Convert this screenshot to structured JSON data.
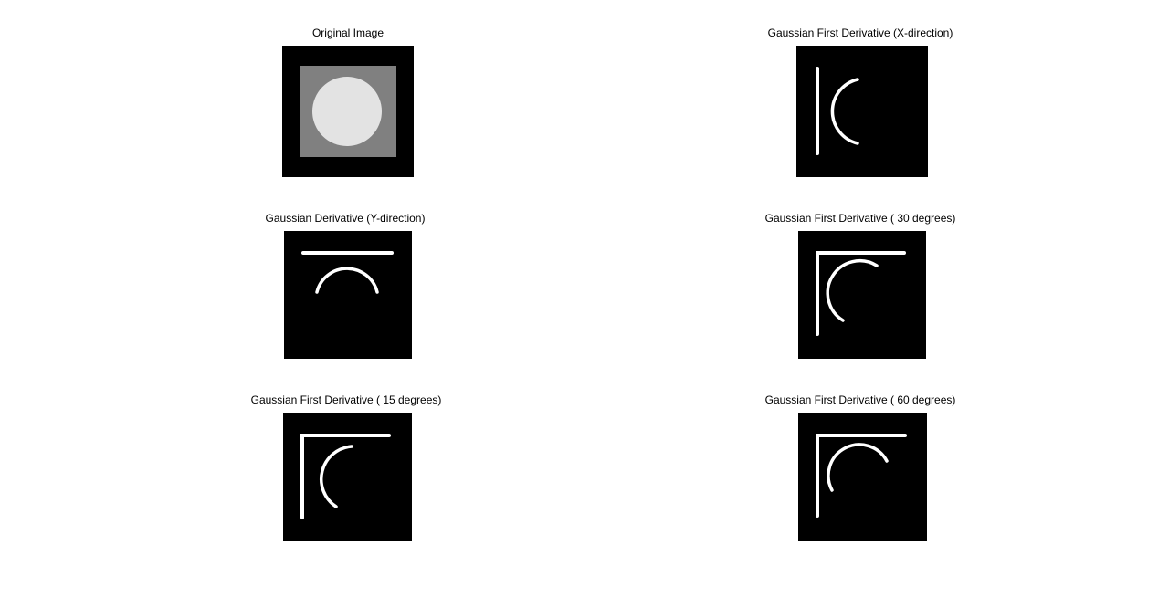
{
  "figure": {
    "panels": [
      {
        "id": "original",
        "title": "Original Image"
      },
      {
        "id": "x_direction",
        "title": "Gaussian First Derivative (X-direction)"
      },
      {
        "id": "y_direction",
        "title": "Gaussian Derivative (Y-direction)"
      },
      {
        "id": "deg30",
        "title": "Gaussian First Derivative ( 30 degrees)"
      },
      {
        "id": "deg15",
        "title": "Gaussian First Derivative ( 15 degrees)"
      },
      {
        "id": "deg60",
        "title": "Gaussian First Derivative ( 60 degrees)"
      }
    ]
  },
  "colors": {
    "background": "#000000",
    "square": "#808080",
    "circle": "#e3e3e3",
    "edge": "#ffffff"
  }
}
